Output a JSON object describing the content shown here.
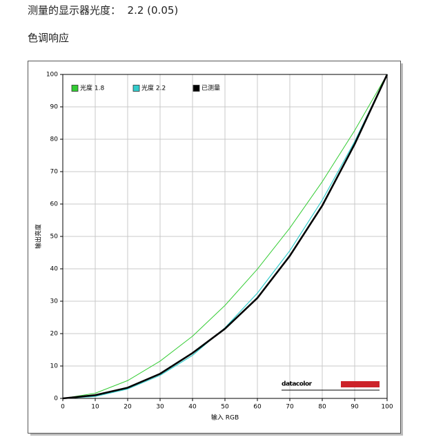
{
  "header": {
    "title": "测量的显示器光度：  2.2 (0.05)",
    "section": "色调响应"
  },
  "chart_data": {
    "type": "line",
    "x_label": "输入 RGB",
    "y_label": "输出亮度",
    "brand": "datacolor",
    "x": [
      0,
      10,
      20,
      30,
      40,
      50,
      60,
      70,
      80,
      90,
      100
    ],
    "series": [
      {
        "name": "光度 1.8",
        "color": "#33cc33",
        "values": [
          0,
          1.6,
          5.5,
          11.5,
          19.2,
          28.7,
          39.9,
          52.6,
          66.9,
          82.7,
          100
        ]
      },
      {
        "name": "光度 2.2",
        "color": "#33cccc",
        "values": [
          0,
          0.6,
          2.9,
          7.1,
          13.3,
          21.8,
          32.5,
          45.6,
          61.2,
          79.3,
          100
        ]
      },
      {
        "name": "已测量",
        "color": "#000000",
        "values": [
          0,
          1.0,
          3.3,
          7.6,
          14.0,
          21.5,
          31.0,
          44.0,
          59.5,
          78.5,
          100
        ]
      }
    ],
    "xlim": [
      0,
      100
    ],
    "ylim": [
      0,
      100
    ],
    "xticks": [
      0,
      10,
      20,
      30,
      40,
      50,
      60,
      70,
      80,
      90,
      100
    ],
    "yticks": [
      0,
      10,
      20,
      30,
      40,
      50,
      60,
      70,
      80,
      90,
      100
    ],
    "grid": true,
    "legend": "top-left"
  }
}
